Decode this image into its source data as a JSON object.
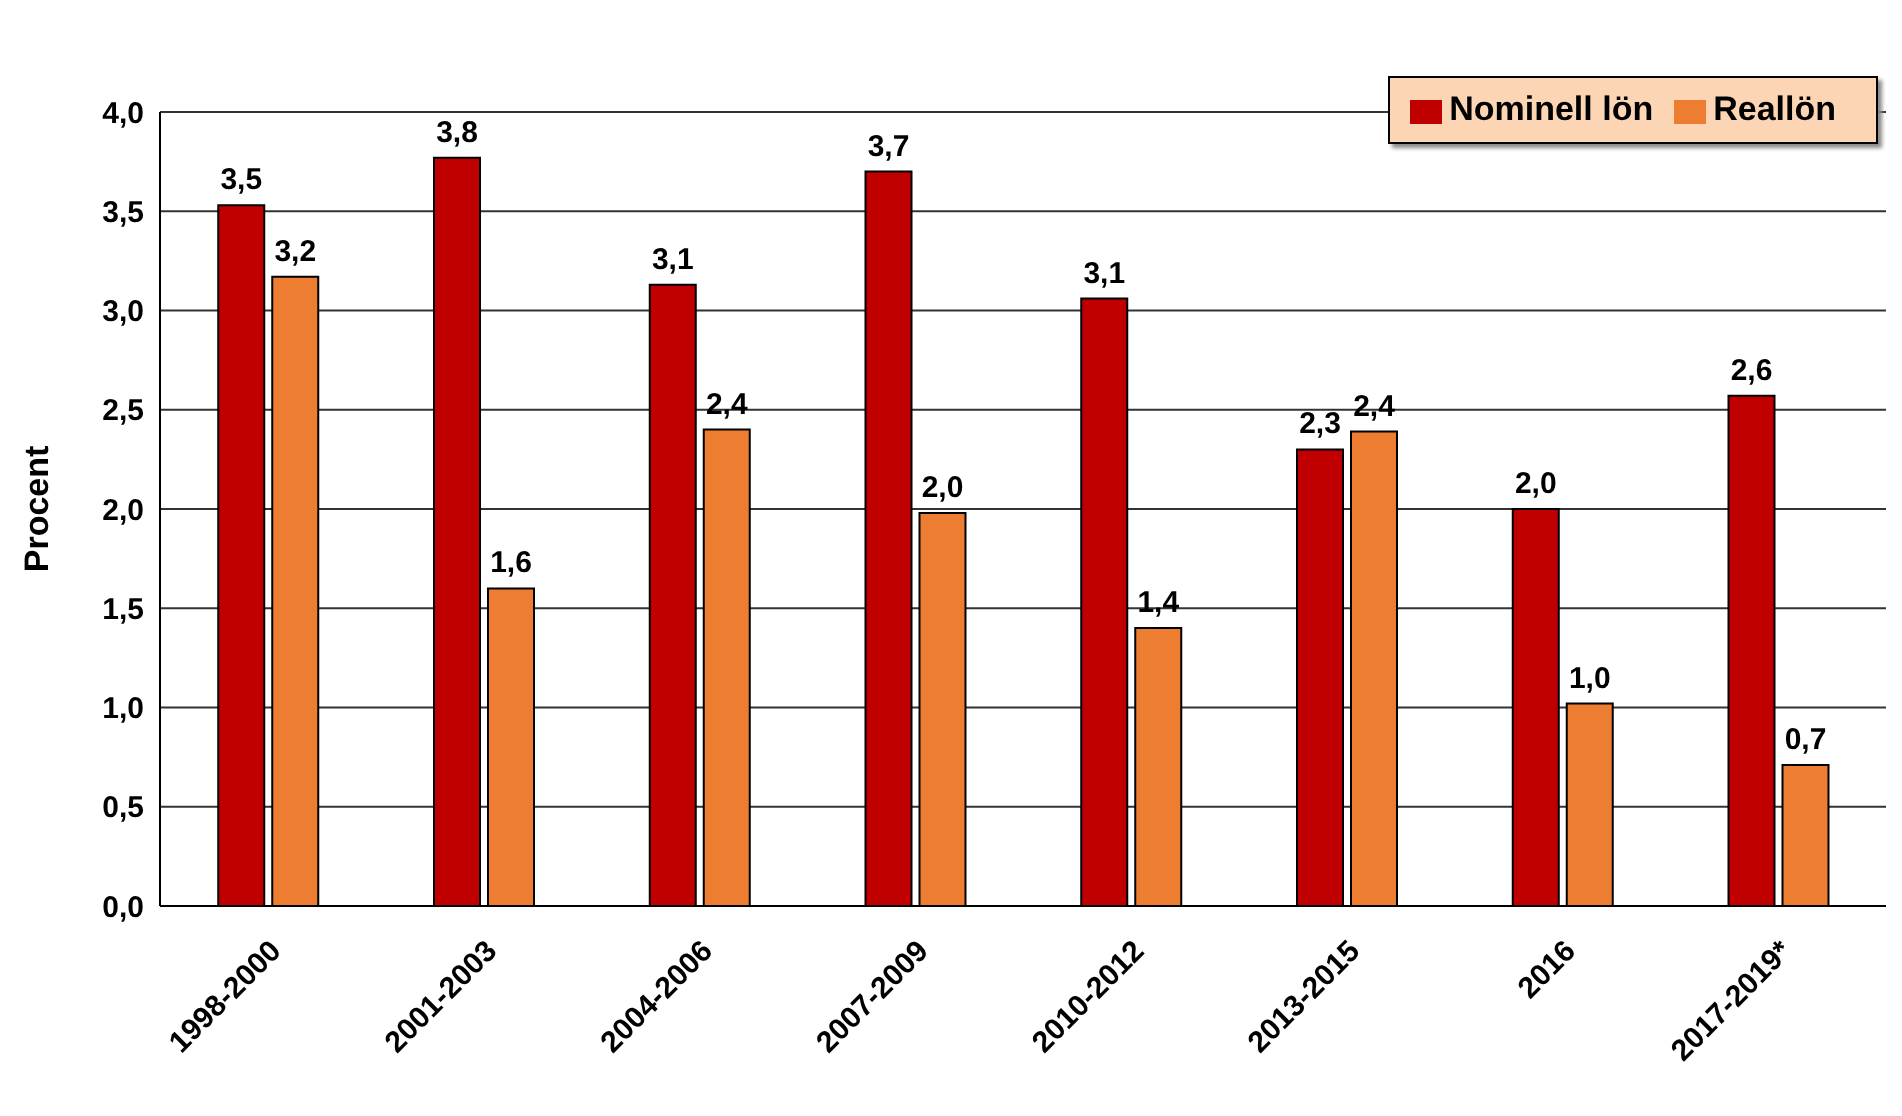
{
  "chart_data": {
    "type": "bar",
    "ylabel": "Procent",
    "categories": [
      "1998-2000",
      "2001-2003",
      "2004-2006",
      "2007-2009",
      "2010-2012",
      "2013-2015",
      "2016",
      "2017-2019*"
    ],
    "series": [
      {
        "name": "Nominell lön",
        "color": "#c00000",
        "values": [
          3.53,
          3.77,
          3.13,
          3.7,
          3.06,
          2.3,
          2.0,
          2.57
        ],
        "value_labels": [
          "3,5",
          "3,8",
          "3,1",
          "3,7",
          "3,1",
          "2,3",
          "2,0",
          "2,6"
        ]
      },
      {
        "name": "Reallön",
        "color": "#ed7d31",
        "values": [
          3.17,
          1.6,
          2.4,
          1.98,
          1.4,
          2.39,
          1.02,
          0.71
        ],
        "value_labels": [
          "3,2",
          "1,6",
          "2,4",
          "2,0",
          "1,4",
          "2,4",
          "1,0",
          "0,7"
        ]
      }
    ],
    "ylim": [
      0,
      4
    ],
    "yticks": [
      {
        "value": 0,
        "label": "0,0"
      },
      {
        "value": 0.5,
        "label": "0,5"
      },
      {
        "value": 1,
        "label": "1,0"
      },
      {
        "value": 1.5,
        "label": "1,5"
      },
      {
        "value": 2,
        "label": "2,0"
      },
      {
        "value": 2.5,
        "label": "2,5"
      },
      {
        "value": 3,
        "label": "3,0"
      },
      {
        "value": 3.5,
        "label": "3,5"
      },
      {
        "value": 4,
        "label": "4,0"
      }
    ],
    "grid": "y",
    "legend": "top right"
  }
}
